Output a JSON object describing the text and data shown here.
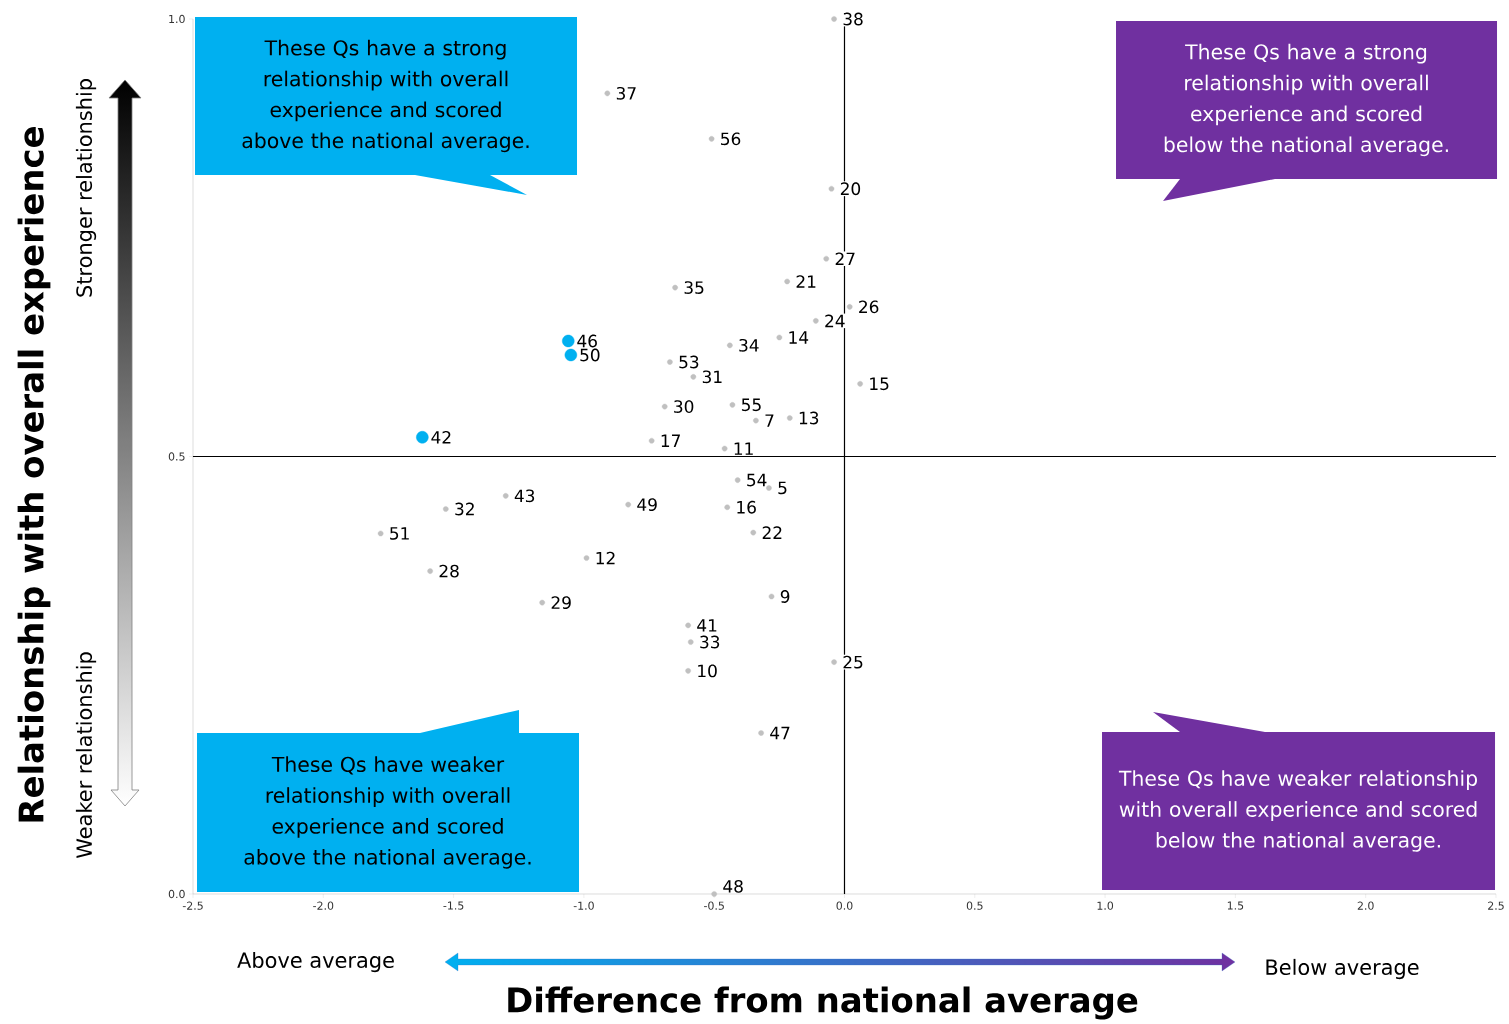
{
  "chart_data": {
    "type": "scatter",
    "xlabel": "Difference from national average",
    "ylabel": "Relationship with overall experience",
    "xlim": [
      -2.5,
      2.5
    ],
    "ylim": [
      0,
      1
    ],
    "xticks": [
      {
        "value": -2.5,
        "label": "-2.5"
      },
      {
        "value": -2,
        "label": "-2.0"
      },
      {
        "value": -1.5,
        "label": "-1.5"
      },
      {
        "value": -1,
        "label": "-1.0"
      },
      {
        "value": -0.5,
        "label": "-0.5"
      },
      {
        "value": 0,
        "label": "0.0"
      },
      {
        "value": 0.5,
        "label": "0.5"
      },
      {
        "value": 1,
        "label": "1.0"
      },
      {
        "value": 1.5,
        "label": "1.5"
      },
      {
        "value": 2,
        "label": "2.0"
      },
      {
        "value": 2.5,
        "label": "2.5"
      }
    ],
    "yticks": [
      {
        "value": 0,
        "label": "0.0"
      },
      {
        "value": 0.5,
        "label": "0.5"
      },
      {
        "value": 1,
        "label": "1.0"
      }
    ],
    "grid": false,
    "ref_lines": [
      {
        "axis": "x",
        "value": 0,
        "color": "#000000"
      },
      {
        "axis": "y",
        "value": 0.5,
        "color": "#000000"
      }
    ],
    "series": [
      {
        "color": "#c0c0c0",
        "x": [
          -0.04,
          -0.91,
          -0.51,
          -0.05,
          -0.07,
          -0.22,
          -0.65,
          0.02,
          -0.11,
          -0.25,
          -0.44,
          -0.67,
          -0.58,
          0.06,
          -0.69,
          -0.43,
          -0.34,
          -0.21,
          -0.74,
          -0.46,
          -0.41,
          -0.29,
          -1.3,
          -1.53,
          -0.83,
          -0.45,
          -1.78,
          -0.35,
          -0.99,
          -1.59,
          -0.28,
          -1.16,
          -0.6,
          -0.59,
          -0.6,
          -0.04,
          -0.32,
          -0.5
        ],
        "values": [
          1.0,
          0.915,
          0.863,
          0.806,
          0.726,
          0.7,
          0.693,
          0.671,
          0.655,
          0.636,
          0.627,
          0.608,
          0.591,
          0.583,
          0.557,
          0.559,
          0.541,
          0.544,
          0.518,
          0.509,
          0.473,
          0.464,
          0.455,
          0.44,
          0.445,
          0.442,
          0.412,
          0.413,
          0.384,
          0.369,
          0.34,
          0.333,
          0.307,
          0.288,
          0.255,
          0.265,
          0.184,
          0.0
        ]
      },
      {
        "color": "#00b0f0",
        "x": [
          -1.06,
          -1.05,
          -1.62
        ],
        "values": [
          0.632,
          0.616,
          0.522
        ]
      }
    ],
    "annotations": [
      "These Qs have a strong relationship with overall experience and scored above the national average.",
      "These Qs have a strong relationship with overall experience and scored below the national average.",
      "These Qs have weaker relationship with overall experience and scored above the national average.",
      "These Qs have weaker relationship with overall experience and scored below the national average.",
      "Stronger relationship",
      "Weaker relationship",
      "Above average",
      "Below average",
      {
        "text": "38",
        "x": -0.04,
        "y": 1.0
      },
      {
        "text": "37",
        "x": -0.91,
        "y": 0.915
      },
      {
        "text": "56",
        "x": -0.51,
        "y": 0.863
      },
      {
        "text": "20",
        "x": -0.05,
        "y": 0.806
      },
      {
        "text": "27",
        "x": -0.07,
        "y": 0.726
      },
      {
        "text": "21",
        "x": -0.22,
        "y": 0.7
      },
      {
        "text": "35",
        "x": -0.65,
        "y": 0.693
      },
      {
        "text": "26",
        "x": 0.02,
        "y": 0.671
      },
      {
        "text": "24",
        "x": -0.11,
        "y": 0.655
      },
      {
        "text": "14",
        "x": -0.25,
        "y": 0.636
      },
      {
        "text": "34",
        "x": -0.44,
        "y": 0.627
      },
      {
        "text": "53",
        "x": -0.67,
        "y": 0.608
      },
      {
        "text": "31",
        "x": -0.58,
        "y": 0.591
      },
      {
        "text": "15",
        "x": 0.06,
        "y": 0.583
      },
      {
        "text": "30",
        "x": -0.69,
        "y": 0.557
      },
      {
        "text": "55",
        "x": -0.43,
        "y": 0.559
      },
      {
        "text": "7",
        "x": -0.34,
        "y": 0.541
      },
      {
        "text": "13",
        "x": -0.21,
        "y": 0.544
      },
      {
        "text": "17",
        "x": -0.74,
        "y": 0.518
      },
      {
        "text": "11",
        "x": -0.46,
        "y": 0.509
      },
      {
        "text": "54",
        "x": -0.41,
        "y": 0.473
      },
      {
        "text": "5",
        "x": -0.29,
        "y": 0.464
      },
      {
        "text": "43",
        "x": -1.3,
        "y": 0.455
      },
      {
        "text": "32",
        "x": -1.53,
        "y": 0.44
      },
      {
        "text": "49",
        "x": -0.83,
        "y": 0.445
      },
      {
        "text": "16",
        "x": -0.45,
        "y": 0.442
      },
      {
        "text": "51",
        "x": -1.78,
        "y": 0.412
      },
      {
        "text": "22",
        "x": -0.35,
        "y": 0.413
      },
      {
        "text": "12",
        "x": -0.99,
        "y": 0.384
      },
      {
        "text": "28",
        "x": -1.59,
        "y": 0.369
      },
      {
        "text": "9",
        "x": -0.28,
        "y": 0.34
      },
      {
        "text": "29",
        "x": -1.16,
        "y": 0.333
      },
      {
        "text": "41",
        "x": -0.6,
        "y": 0.307
      },
      {
        "text": "33",
        "x": -0.59,
        "y": 0.288
      },
      {
        "text": "10",
        "x": -0.6,
        "y": 0.255
      },
      {
        "text": "25",
        "x": -0.04,
        "y": 0.265
      },
      {
        "text": "47",
        "x": -0.32,
        "y": 0.184
      },
      {
        "text": "48",
        "x": -0.5,
        "y": 0.0
      },
      {
        "text": "46",
        "x": -1.06,
        "y": 0.632
      },
      {
        "text": "50",
        "x": -1.05,
        "y": 0.616
      },
      {
        "text": "42",
        "x": -1.62,
        "y": 0.522
      }
    ]
  }
}
